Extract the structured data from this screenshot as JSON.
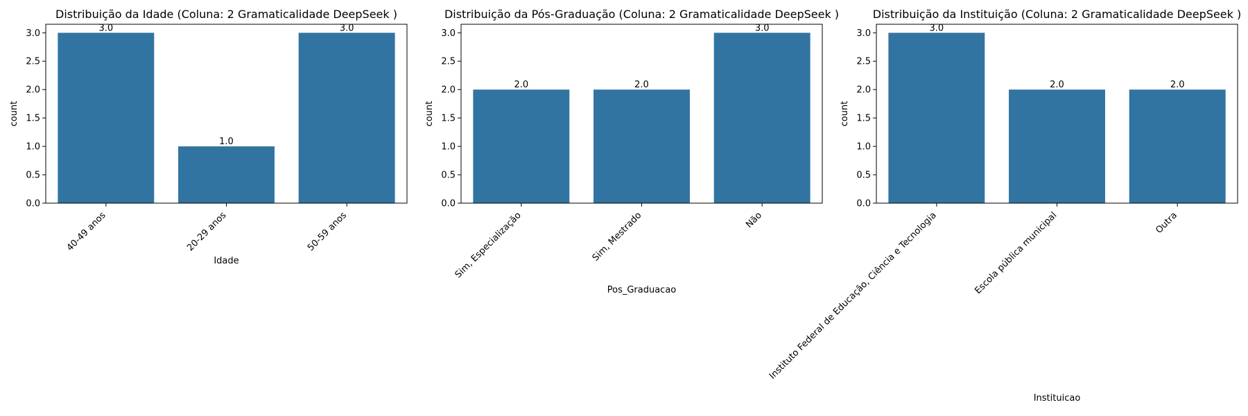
{
  "chart_data": [
    {
      "type": "bar",
      "title": "Distribuição da Idade (Coluna: 2 Gramaticalidade DeepSeek )",
      "xlabel": "Idade",
      "ylabel": "count",
      "categories": [
        "40-49 anos",
        "20-29 anos",
        "50-59 anos"
      ],
      "values": [
        3.0,
        1.0,
        3.0
      ],
      "data_labels": [
        "3.0",
        "1.0",
        "3.0"
      ],
      "yticks": [
        "0.0",
        "0.5",
        "1.0",
        "1.5",
        "2.0",
        "2.5",
        "3.0"
      ],
      "ylim": [
        0,
        3.15
      ],
      "grid": false,
      "bar_color": "#3274a1"
    },
    {
      "type": "bar",
      "title": "Distribuição da Pós-Graduação (Coluna: 2 Gramaticalidade DeepSeek )",
      "xlabel": "Pos_Graduacao",
      "ylabel": "count",
      "categories": [
        "Sim, Especialização",
        "Sim, Mestrado",
        "Não"
      ],
      "values": [
        2.0,
        2.0,
        3.0
      ],
      "data_labels": [
        "2.0",
        "2.0",
        "3.0"
      ],
      "yticks": [
        "0.0",
        "0.5",
        "1.0",
        "1.5",
        "2.0",
        "2.5",
        "3.0"
      ],
      "ylim": [
        0,
        3.15
      ],
      "grid": false,
      "bar_color": "#3274a1"
    },
    {
      "type": "bar",
      "title": "Distribuição da Instituição (Coluna: 2 Gramaticalidade DeepSeek )",
      "xlabel": "Instituicao",
      "ylabel": "count",
      "categories": [
        "Instituto Federal de Educação, Ciência e Tecnologia",
        "Escola pública municipal",
        "Outra"
      ],
      "values": [
        3.0,
        2.0,
        2.0
      ],
      "data_labels": [
        "3.0",
        "2.0",
        "2.0"
      ],
      "yticks": [
        "0.0",
        "0.5",
        "1.0",
        "1.5",
        "2.0",
        "2.5",
        "3.0"
      ],
      "ylim": [
        0,
        3.15
      ],
      "grid": false,
      "bar_color": "#3274a1"
    }
  ]
}
